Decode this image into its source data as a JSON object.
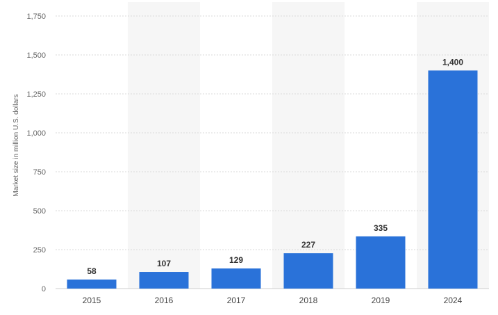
{
  "chart_data": {
    "type": "bar",
    "categories": [
      "2015",
      "2016",
      "2017",
      "2018",
      "2019",
      "2024"
    ],
    "values": [
      58,
      107,
      129,
      227,
      335,
      1400
    ],
    "value_labels": [
      "58",
      "107",
      "129",
      "227",
      "335",
      "1,400"
    ],
    "title": "",
    "xlabel": "",
    "ylabel": "Market size in million U.S. dollars",
    "ylim": [
      0,
      1750
    ],
    "yticks": [
      0,
      250,
      500,
      750,
      1000,
      1250,
      1500,
      1750
    ],
    "ytick_labels": [
      "0",
      "250",
      "500",
      "750",
      "1,000",
      "1,250",
      "1,500",
      "1,750"
    ],
    "grid": true,
    "bar_color": "#2a72d9",
    "alt_band_color": "#f6f6f6"
  }
}
